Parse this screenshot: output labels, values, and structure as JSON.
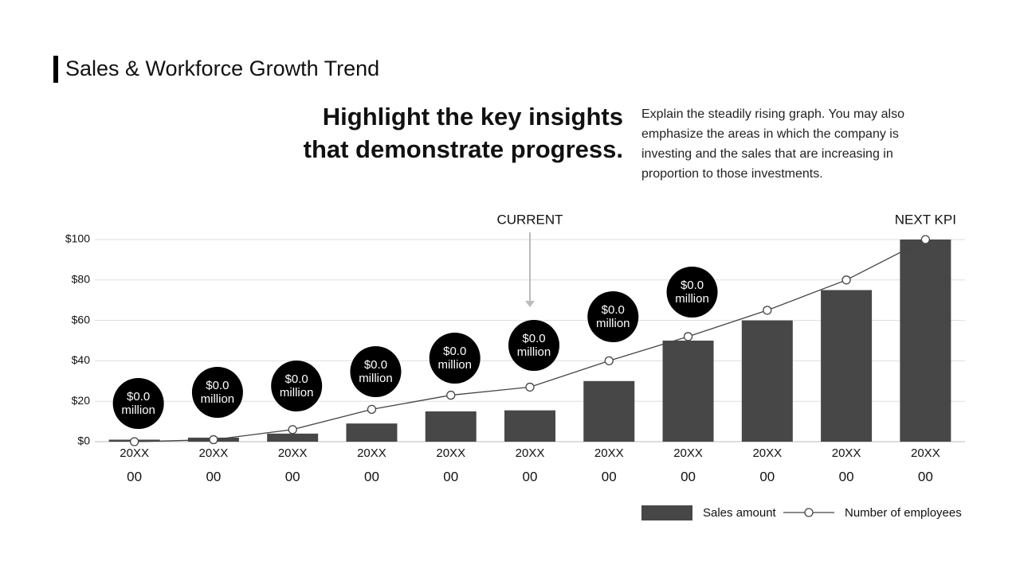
{
  "slide": {
    "headline": [
      "Highlight the key insights",
      "that demonstrate progress."
    ],
    "description": "Explain the steadily rising graph. You may also emphasize the areas in which the company is investing and the sales that are increasing in proportion to those investments."
  },
  "chart_data": {
    "type": "bar-line",
    "title": "Sales & Workforce Growth Trend",
    "categories": [
      "20XX",
      "20XX",
      "20XX",
      "20XX",
      "20XX",
      "20XX",
      "20XX",
      "20XX",
      "20XX",
      "20XX",
      "20XX"
    ],
    "category_sublabels": [
      "00",
      "00",
      "00",
      "00",
      "00",
      "00",
      "00",
      "00",
      "00",
      "00",
      "00"
    ],
    "series": [
      {
        "name": "Sales amount",
        "type": "bar",
        "color": "#474747",
        "values": [
          1,
          2,
          4,
          9,
          15,
          15.5,
          30,
          50,
          60,
          75,
          100
        ]
      },
      {
        "name": "Number of employees",
        "type": "line",
        "color": "#444444",
        "values": [
          0,
          1,
          6,
          16,
          23,
          27,
          40,
          52,
          65,
          80,
          100
        ]
      }
    ],
    "ylim": [
      0,
      100
    ],
    "yticks": [
      {
        "value": 0,
        "label": "$0"
      },
      {
        "value": 20,
        "label": "$20"
      },
      {
        "value": 40,
        "label": "$40"
      },
      {
        "value": 60,
        "label": "$60"
      },
      {
        "value": 80,
        "label": "$80"
      },
      {
        "value": 100,
        "label": "$100"
      }
    ],
    "grid": true,
    "callouts": [
      [
        "$0.0",
        "million"
      ],
      [
        "$0.0",
        "million"
      ],
      [
        "$0.0",
        "million"
      ],
      [
        "$0.0",
        "million"
      ],
      [
        "$0.0",
        "million"
      ],
      [
        "$0.0",
        "million"
      ],
      [
        "$0.0",
        "million"
      ],
      [
        "$0.0",
        "million"
      ]
    ],
    "annotations": [
      {
        "text": "CURRENT",
        "category": 5,
        "arrow": true
      },
      {
        "text": "NEXT KPI",
        "category": 10,
        "arrow": false
      }
    ],
    "legend": "bottom-right"
  }
}
